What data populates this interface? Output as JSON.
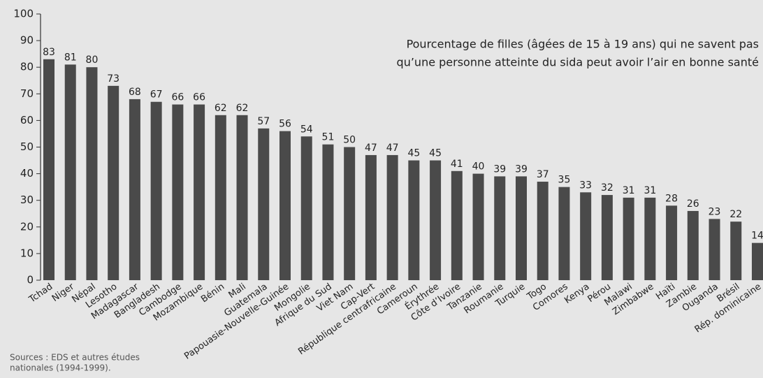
{
  "chart_data": {
    "type": "bar",
    "title": [
      "Pourcentage de filles (âgées de 15 à 19 ans) qui ne savent pas",
      "qu’une personne atteinte du sida peut avoir l’air en bonne santé"
    ],
    "source": [
      "Sources : EDS et autres études",
      "nationales (1994-1999)."
    ],
    "categories": [
      "Tchad",
      "Niger",
      "Népal",
      "Lesotho",
      "Madagascar",
      "Bangladesh",
      "Cambodge",
      "Mozambique",
      "Bénin",
      "Mali",
      "Guatemala",
      "Papouasie-Nouvelle-Guinée",
      "Mongolie",
      "Afrique du Sud",
      "Viet Nam",
      "Cap-Vert",
      "République centrafricaine",
      "Cameroun",
      "Érythrée",
      "Côte d’Ivoire",
      "Tanzanie",
      "Roumanie",
      "Turquie",
      "Togo",
      "Comores",
      "Kenya",
      "Pérou",
      "Malawi",
      "Zimbabwe",
      "Haïti",
      "Zambie",
      "Ouganda",
      "Brésil",
      "Rép. dominicaine"
    ],
    "values": [
      83,
      81,
      80,
      73,
      68,
      67,
      66,
      66,
      62,
      62,
      57,
      56,
      54,
      51,
      50,
      47,
      47,
      45,
      45,
      41,
      40,
      39,
      39,
      37,
      35,
      33,
      32,
      31,
      31,
      28,
      26,
      23,
      22,
      14
    ],
    "color": "#4a4a4a",
    "ylim": [
      0,
      100
    ],
    "yticks": [
      0,
      10,
      20,
      30,
      40,
      50,
      60,
      70,
      80,
      90,
      100
    ],
    "grid": false
  }
}
